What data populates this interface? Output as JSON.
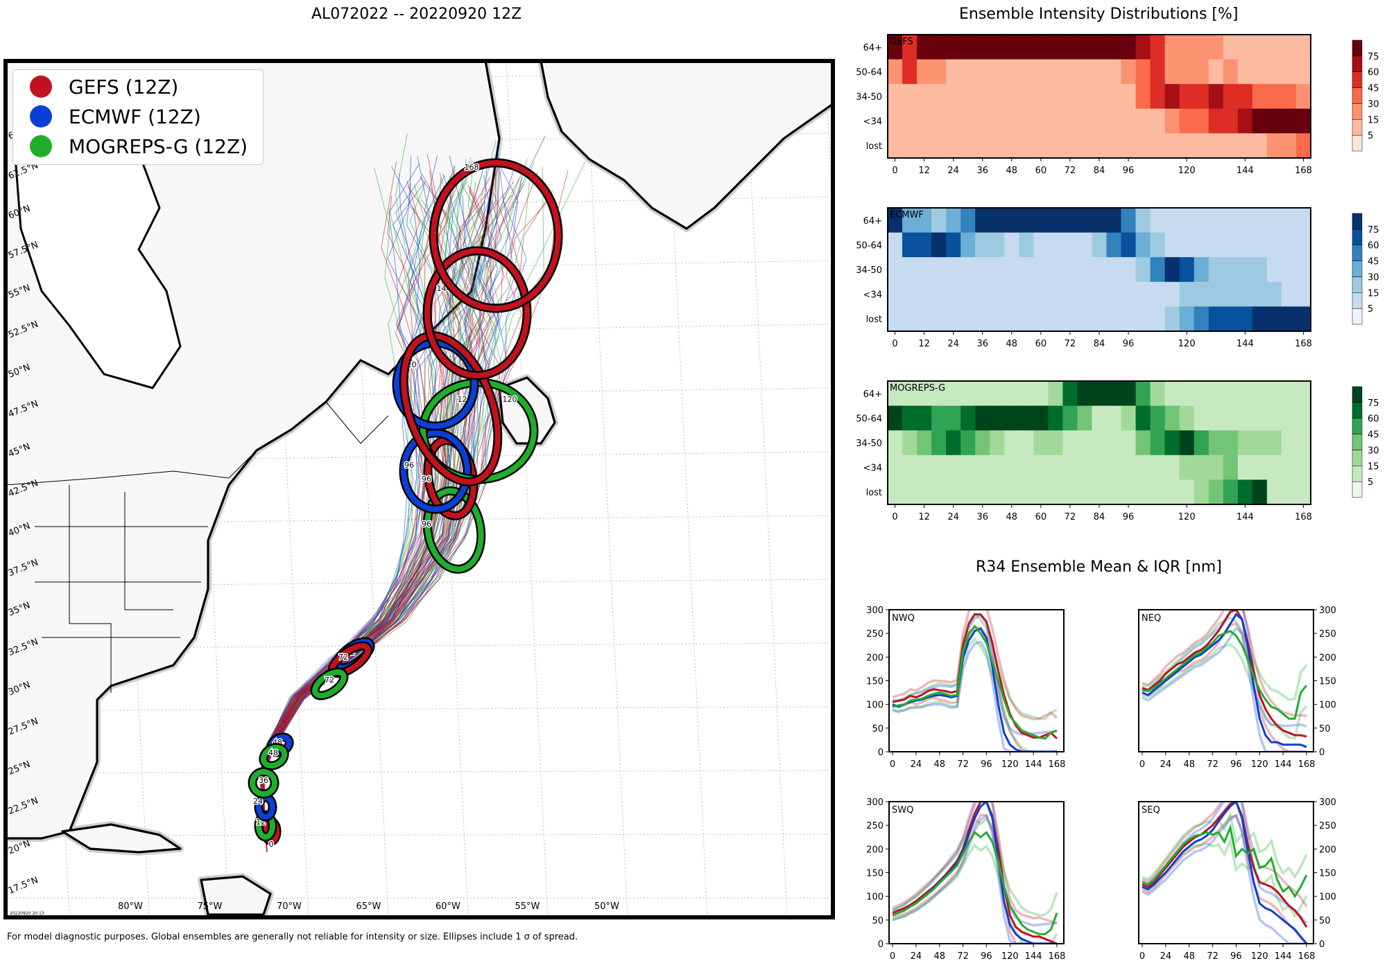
{
  "header": {
    "map_title": "AL072022 -- 20220920 12Z",
    "intensity_title": "Ensemble Intensity Distributions [%]",
    "r34_title": "R34 Ensemble Mean & IQR [nm]"
  },
  "legend": {
    "items": [
      {
        "label": "GEFS (12Z)",
        "color": "#c1121f"
      },
      {
        "label": "ECMWF (12Z)",
        "color": "#0b3fd6"
      },
      {
        "label": "MOGREPS-G (12Z)",
        "color": "#1fae2b"
      }
    ]
  },
  "map": {
    "lat_labels": [
      "17.5°N",
      "20°N",
      "22.5°N",
      "25°N",
      "27.5°N",
      "30°N",
      "32.5°N",
      "35°N",
      "37.5°N",
      "40°N",
      "42.5°N",
      "45°N",
      "47.5°N",
      "50°N",
      "52.5°N",
      "55°N",
      "57.5°N",
      "60°N",
      "62.5°N",
      "6"
    ],
    "lon_labels": [
      "80°W",
      "75°W",
      "70°W",
      "65°W",
      "60°W",
      "55°W",
      "50°W"
    ],
    "stamp": "20220920 20:13",
    "ellipse_labels": [
      "0",
      "12",
      "24",
      "36",
      "48",
      "72",
      "96",
      "120",
      "144",
      "168"
    ]
  },
  "footer": {
    "note": "For model diagnostic purposes. Global ensembles are generally not reliable for intensity or size. Ellipses include 1 σ of spread."
  },
  "colorbar": {
    "ticks": [
      "5",
      "15",
      "30",
      "45",
      "60",
      "75"
    ],
    "reds": [
      "#fee5d9",
      "#fcbba1",
      "#fc9272",
      "#fb6a4a",
      "#de2d26",
      "#a50f15",
      "#67000d"
    ],
    "blues": [
      "#eff3ff",
      "#c6dbef",
      "#9ecae1",
      "#6baed6",
      "#3182bd",
      "#08519c",
      "#08306b"
    ],
    "greens": [
      "#edf8e9",
      "#c7e9c0",
      "#a1d99b",
      "#74c476",
      "#31a354",
      "#006d2c",
      "#00441b"
    ]
  },
  "chart_data": [
    {
      "type": "heatmap",
      "name": "GEFS",
      "title": "GEFS",
      "palette": "reds",
      "x_ticks": [
        "0",
        "12",
        "24",
        "36",
        "48",
        "60",
        "72",
        "84",
        "96",
        "120",
        "144",
        "168"
      ],
      "y_labels": [
        "64+",
        "50-64",
        "34-50",
        "<34",
        "lost"
      ],
      "rows": [
        [
          75,
          45,
          75,
          75,
          75,
          75,
          75,
          75,
          75,
          75,
          75,
          75,
          75,
          75,
          75,
          75,
          75,
          60,
          45,
          15,
          15,
          15,
          15,
          5,
          5,
          5,
          5,
          5,
          5
        ],
        [
          15,
          45,
          15,
          15,
          5,
          5,
          5,
          5,
          5,
          5,
          5,
          5,
          5,
          5,
          5,
          5,
          15,
          30,
          45,
          15,
          15,
          15,
          5,
          15,
          5,
          5,
          5,
          5,
          5
        ],
        [
          5,
          5,
          5,
          5,
          5,
          5,
          5,
          5,
          5,
          5,
          5,
          5,
          5,
          5,
          5,
          5,
          5,
          30,
          45,
          60,
          45,
          45,
          60,
          45,
          45,
          30,
          30,
          30,
          15
        ],
        [
          5,
          5,
          5,
          5,
          5,
          5,
          5,
          5,
          5,
          5,
          5,
          5,
          5,
          5,
          5,
          5,
          5,
          5,
          5,
          15,
          30,
          30,
          45,
          45,
          60,
          75,
          75,
          75,
          75
        ],
        [
          5,
          5,
          5,
          5,
          5,
          5,
          5,
          5,
          5,
          5,
          5,
          5,
          5,
          5,
          5,
          5,
          5,
          5,
          5,
          5,
          5,
          5,
          5,
          5,
          5,
          5,
          15,
          15,
          30
        ]
      ]
    },
    {
      "type": "heatmap",
      "name": "ECMWF",
      "title": "ECMWF",
      "palette": "blues",
      "x_ticks": [
        "0",
        "12",
        "24",
        "36",
        "48",
        "60",
        "72",
        "84",
        "96",
        "120",
        "144",
        "168"
      ],
      "y_labels": [
        "64+",
        "50-64",
        "34-50",
        "<34",
        "lost"
      ],
      "rows": [
        [
          75,
          30,
          30,
          15,
          30,
          45,
          75,
          75,
          75,
          75,
          75,
          75,
          75,
          75,
          75,
          75,
          45,
          15,
          5,
          5,
          5,
          5,
          5,
          5,
          5,
          5,
          5,
          5,
          5
        ],
        [
          5,
          60,
          60,
          75,
          60,
          30,
          15,
          15,
          5,
          15,
          5,
          5,
          5,
          5,
          15,
          45,
          60,
          30,
          15,
          5,
          5,
          5,
          5,
          5,
          5,
          5,
          5,
          5,
          5
        ],
        [
          5,
          5,
          5,
          5,
          5,
          5,
          5,
          5,
          5,
          5,
          5,
          5,
          5,
          5,
          5,
          5,
          5,
          15,
          45,
          75,
          60,
          30,
          15,
          15,
          15,
          15,
          5,
          5,
          5
        ],
        [
          5,
          5,
          5,
          5,
          5,
          5,
          5,
          5,
          5,
          5,
          5,
          5,
          5,
          5,
          5,
          5,
          5,
          5,
          5,
          5,
          15,
          15,
          15,
          15,
          15,
          15,
          15,
          5,
          5
        ],
        [
          5,
          5,
          5,
          5,
          5,
          5,
          5,
          5,
          5,
          5,
          5,
          5,
          5,
          5,
          5,
          5,
          5,
          5,
          5,
          15,
          30,
          45,
          60,
          60,
          60,
          75,
          75,
          75,
          75
        ]
      ]
    },
    {
      "type": "heatmap",
      "name": "MOGREPS-G",
      "title": "MOGREPS-G",
      "palette": "greens",
      "x_ticks": [
        "0",
        "12",
        "24",
        "36",
        "48",
        "60",
        "72",
        "84",
        "96",
        "120",
        "144",
        "168"
      ],
      "y_labels": [
        "64+",
        "50-64",
        "34-50",
        "<34",
        "lost"
      ],
      "rows": [
        [
          5,
          5,
          5,
          5,
          5,
          5,
          5,
          5,
          5,
          5,
          5,
          15,
          60,
          75,
          75,
          75,
          75,
          45,
          15,
          5,
          5,
          5,
          5,
          5,
          5,
          5,
          5,
          5,
          5
        ],
        [
          75,
          60,
          60,
          45,
          45,
          60,
          75,
          75,
          75,
          75,
          75,
          60,
          45,
          30,
          5,
          5,
          15,
          60,
          45,
          30,
          15,
          5,
          5,
          5,
          5,
          5,
          5,
          5,
          5
        ],
        [
          5,
          15,
          30,
          45,
          60,
          45,
          30,
          15,
          5,
          5,
          15,
          15,
          5,
          5,
          5,
          5,
          5,
          30,
          45,
          60,
          75,
          45,
          30,
          30,
          15,
          15,
          15,
          5,
          5
        ],
        [
          5,
          5,
          5,
          5,
          5,
          5,
          5,
          5,
          5,
          5,
          5,
          5,
          5,
          5,
          5,
          5,
          5,
          5,
          5,
          5,
          15,
          15,
          15,
          30,
          5,
          5,
          5,
          5,
          5
        ],
        [
          5,
          5,
          5,
          5,
          5,
          5,
          5,
          5,
          5,
          5,
          5,
          5,
          5,
          5,
          5,
          5,
          5,
          5,
          5,
          5,
          5,
          15,
          30,
          45,
          60,
          75,
          5,
          5,
          5
        ]
      ]
    },
    {
      "type": "line",
      "name": "NWQ",
      "title": "NWQ",
      "x_ticks": [
        "0",
        "24",
        "48",
        "72",
        "96",
        "120",
        "144",
        "168"
      ],
      "y_ticks": [
        "0",
        "50",
        "100",
        "150",
        "200",
        "250",
        "300"
      ],
      "ylim": [
        0,
        300
      ],
      "xlim": [
        0,
        168
      ],
      "x": [
        0,
        6,
        12,
        18,
        24,
        30,
        36,
        42,
        48,
        54,
        60,
        66,
        72,
        78,
        84,
        90,
        96,
        102,
        108,
        114,
        120,
        126,
        132,
        138,
        144,
        150,
        156,
        162,
        168
      ],
      "series": [
        {
          "name": "GEFS",
          "values": [
            105,
            108,
            110,
            118,
            115,
            120,
            128,
            132,
            130,
            128,
            125,
            128,
            225,
            270,
            290,
            290,
            275,
            230,
            170,
            120,
            80,
            55,
            40,
            35,
            30,
            30,
            35,
            40,
            28
          ]
        },
        {
          "name": "ECMWF",
          "values": [
            100,
            95,
            100,
            105,
            108,
            110,
            115,
            118,
            120,
            118,
            115,
            118,
            198,
            235,
            255,
            260,
            240,
            180,
            100,
            40,
            15,
            5,
            0,
            0,
            0,
            0,
            0,
            0,
            0
          ]
        },
        {
          "name": "MOGREPS-G",
          "values": [
            95,
            98,
            100,
            108,
            110,
            112,
            118,
            122,
            125,
            122,
            118,
            120,
            210,
            250,
            265,
            250,
            230,
            190,
            150,
            110,
            75,
            60,
            45,
            40,
            35,
            30,
            28,
            40,
            45
          ]
        }
      ]
    },
    {
      "type": "line",
      "name": "NEQ",
      "title": "NEQ",
      "x_ticks": [
        "0",
        "24",
        "48",
        "72",
        "96",
        "120",
        "144",
        "168"
      ],
      "y_ticks": [
        "0",
        "50",
        "100",
        "150",
        "200",
        "250",
        "300"
      ],
      "ylim": [
        0,
        300
      ],
      "xlim": [
        0,
        168
      ],
      "x": [
        0,
        6,
        12,
        18,
        24,
        30,
        36,
        42,
        48,
        54,
        60,
        66,
        72,
        78,
        84,
        90,
        96,
        102,
        108,
        114,
        120,
        126,
        132,
        138,
        144,
        150,
        156,
        162,
        168
      ],
      "series": [
        {
          "name": "GEFS",
          "values": [
            135,
            130,
            140,
            150,
            165,
            175,
            185,
            190,
            200,
            210,
            215,
            225,
            240,
            255,
            275,
            295,
            300,
            280,
            230,
            170,
            120,
            90,
            70,
            55,
            45,
            40,
            35,
            35,
            32
          ]
        },
        {
          "name": "ECMWF",
          "values": [
            125,
            120,
            130,
            140,
            150,
            160,
            170,
            180,
            190,
            200,
            205,
            215,
            225,
            235,
            250,
            270,
            290,
            280,
            220,
            140,
            70,
            35,
            20,
            20,
            15,
            15,
            15,
            15,
            10
          ]
        },
        {
          "name": "MOGREPS-G",
          "values": [
            130,
            128,
            135,
            145,
            155,
            165,
            175,
            185,
            195,
            205,
            210,
            220,
            230,
            245,
            250,
            255,
            245,
            225,
            195,
            160,
            130,
            110,
            95,
            90,
            80,
            70,
            70,
            125,
            140
          ]
        }
      ]
    },
    {
      "type": "line",
      "name": "SWQ",
      "title": "SWQ",
      "x_ticks": [
        "0",
        "24",
        "48",
        "72",
        "96",
        "120",
        "144",
        "168"
      ],
      "y_ticks": [
        "0",
        "50",
        "100",
        "150",
        "200",
        "250",
        "300"
      ],
      "ylim": [
        0,
        300
      ],
      "xlim": [
        0,
        168
      ],
      "x": [
        0,
        6,
        12,
        18,
        24,
        30,
        36,
        42,
        48,
        54,
        60,
        66,
        72,
        78,
        84,
        90,
        96,
        102,
        108,
        114,
        120,
        126,
        132,
        138,
        144,
        150,
        156,
        162,
        168
      ],
      "series": [
        {
          "name": "GEFS",
          "values": [
            65,
            70,
            75,
            82,
            90,
            100,
            110,
            120,
            132,
            145,
            160,
            175,
            200,
            240,
            275,
            300,
            300,
            270,
            200,
            120,
            60,
            35,
            25,
            20,
            15,
            15,
            10,
            5,
            0
          ]
        },
        {
          "name": "ECMWF",
          "values": [
            60,
            65,
            70,
            78,
            85,
            95,
            105,
            118,
            130,
            142,
            155,
            170,
            195,
            230,
            265,
            290,
            300,
            265,
            180,
            90,
            40,
            20,
            10,
            5,
            0,
            0,
            0,
            0,
            0
          ]
        },
        {
          "name": "MOGREPS-G",
          "values": [
            60,
            65,
            70,
            78,
            85,
            95,
            105,
            115,
            128,
            140,
            152,
            165,
            190,
            215,
            235,
            225,
            235,
            215,
            175,
            120,
            80,
            60,
            40,
            30,
            25,
            20,
            20,
            30,
            65
          ]
        }
      ]
    },
    {
      "type": "line",
      "name": "SEQ",
      "title": "SEQ",
      "x_ticks": [
        "0",
        "24",
        "48",
        "72",
        "96",
        "120",
        "144",
        "168"
      ],
      "y_ticks": [
        "0",
        "50",
        "100",
        "150",
        "200",
        "250",
        "300"
      ],
      "ylim": [
        0,
        300
      ],
      "xlim": [
        0,
        168
      ],
      "x": [
        0,
        6,
        12,
        18,
        24,
        30,
        36,
        42,
        48,
        54,
        60,
        66,
        72,
        78,
        84,
        90,
        96,
        102,
        108,
        114,
        120,
        126,
        132,
        138,
        144,
        150,
        156,
        162,
        168
      ],
      "series": [
        {
          "name": "GEFS",
          "values": [
            125,
            120,
            130,
            145,
            160,
            175,
            190,
            205,
            215,
            225,
            230,
            240,
            250,
            265,
            280,
            295,
            300,
            270,
            210,
            160,
            130,
            125,
            120,
            110,
            95,
            80,
            70,
            55,
            35
          ]
        },
        {
          "name": "ECMWF",
          "values": [
            120,
            115,
            125,
            138,
            150,
            165,
            180,
            195,
            205,
            215,
            220,
            228,
            240,
            258,
            275,
            290,
            300,
            265,
            195,
            130,
            85,
            75,
            70,
            60,
            50,
            40,
            30,
            15,
            0
          ]
        },
        {
          "name": "MOGREPS-G",
          "values": [
            130,
            125,
            135,
            150,
            165,
            180,
            195,
            210,
            220,
            228,
            230,
            235,
            230,
            235,
            215,
            245,
            185,
            200,
            190,
            200,
            160,
            165,
            180,
            135,
            110,
            120,
            100,
            120,
            145
          ]
        }
      ]
    }
  ]
}
